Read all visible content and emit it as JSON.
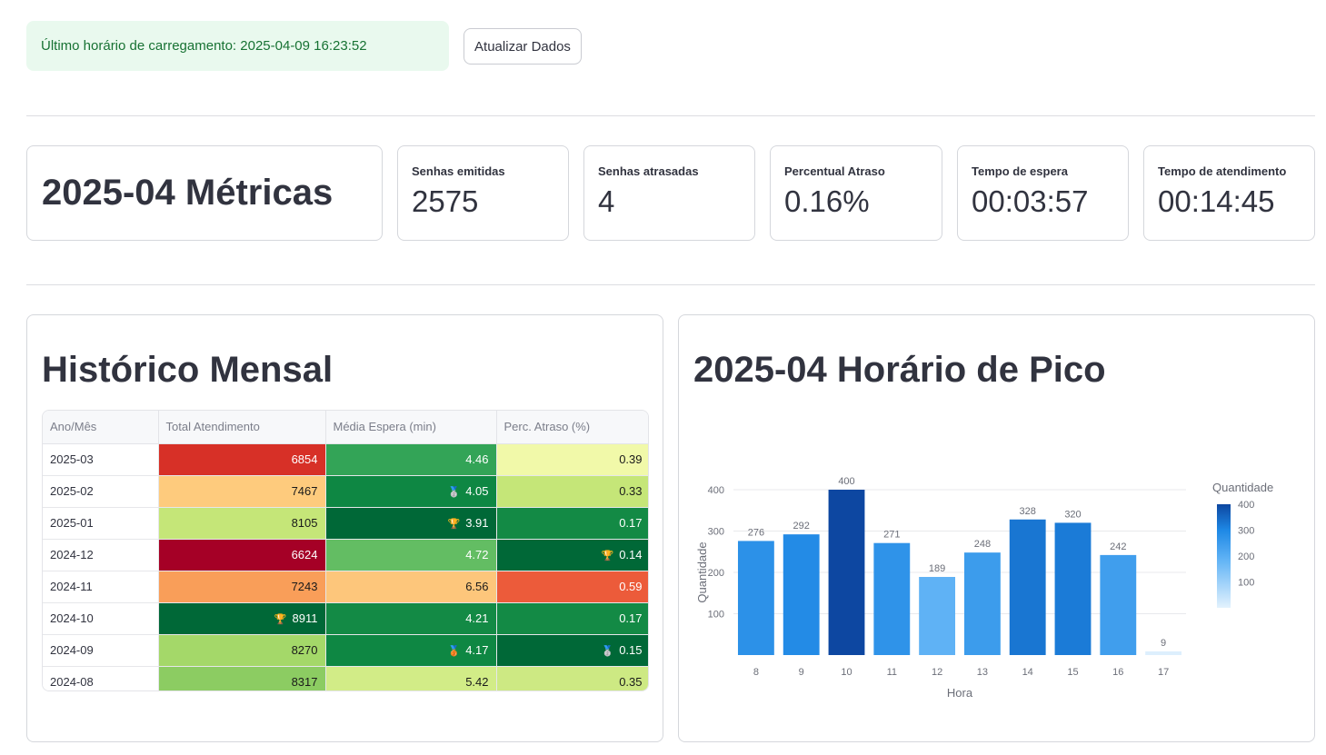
{
  "status": {
    "text": "Último horário de carregamento: 2025-04-09 16:23:52"
  },
  "toolbar": {
    "refresh_label": "Atualizar Dados"
  },
  "metrics_title": "2025-04 Métricas",
  "metrics": [
    {
      "label": "Senhas emitidas",
      "value": "2575"
    },
    {
      "label": "Senhas atrasadas",
      "value": "4"
    },
    {
      "label": "Percentual Atraso",
      "value": "0.16%"
    },
    {
      "label": "Tempo de espera",
      "value": "00:03:57"
    },
    {
      "label": "Tempo de atendimento",
      "value": "00:14:45"
    }
  ],
  "history": {
    "title": "Histórico Mensal",
    "columns": [
      "Ano/Mês",
      "Total Atendimento",
      "Média Espera (min)",
      "Perc. Atraso (%)"
    ],
    "rows": [
      {
        "ym": "2025-03",
        "total": "6854",
        "espera": "4.46",
        "atraso": "0.39",
        "c": [
          "#d73027",
          "#33a457",
          "#f1f9a9"
        ],
        "t": [
          "#fff",
          "#fff",
          "#1a1a1a"
        ],
        "m": [
          "",
          "",
          ""
        ]
      },
      {
        "ym": "2025-02",
        "total": "7467",
        "espera": "4.05",
        "atraso": "0.33",
        "c": [
          "#fecb7d",
          "#0e8743",
          "#c5e678"
        ],
        "t": [
          "#1a1a1a",
          "#fff",
          "#1a1a1a"
        ],
        "m": [
          "",
          "🥈",
          ""
        ]
      },
      {
        "ym": "2025-01",
        "total": "8105",
        "espera": "3.91",
        "atraso": "0.17",
        "c": [
          "#c5e678",
          "#006837",
          "#138a45"
        ],
        "t": [
          "#1a1a1a",
          "#fff",
          "#fff"
        ],
        "m": [
          "",
          "🏆",
          ""
        ]
      },
      {
        "ym": "2024-12",
        "total": "6624",
        "espera": "4.72",
        "atraso": "0.14",
        "c": [
          "#a50026",
          "#63bd63",
          "#006837"
        ],
        "t": [
          "#fff",
          "#fff",
          "#fff"
        ],
        "m": [
          "",
          "",
          "🏆"
        ]
      },
      {
        "ym": "2024-11",
        "total": "7243",
        "espera": "6.56",
        "atraso": "0.59",
        "c": [
          "#f99e59",
          "#fdc67b",
          "#ec5b3a"
        ],
        "t": [
          "#1a1a1a",
          "#1a1a1a",
          "#fff"
        ],
        "m": [
          "",
          "",
          ""
        ]
      },
      {
        "ym": "2024-10",
        "total": "8911",
        "espera": "4.21",
        "atraso": "0.17",
        "c": [
          "#006837",
          "#138a45",
          "#138a45"
        ],
        "t": [
          "#fff",
          "#fff",
          "#fff"
        ],
        "m": [
          "🏆",
          "",
          ""
        ]
      },
      {
        "ym": "2024-09",
        "total": "8270",
        "espera": "4.17",
        "atraso": "0.15",
        "c": [
          "#a4d869",
          "#0e8743",
          "#006837"
        ],
        "t": [
          "#1a1a1a",
          "#fff",
          "#fff"
        ],
        "m": [
          "",
          "🥉",
          "🥈"
        ]
      },
      {
        "ym": "2024-08",
        "total": "8317",
        "espera": "5.42",
        "atraso": "0.35",
        "c": [
          "#8ccc62",
          "#d2ec87",
          "#cde983"
        ],
        "t": [
          "#1a1a1a",
          "#1a1a1a",
          "#1a1a1a"
        ],
        "m": [
          "",
          "",
          ""
        ]
      }
    ]
  },
  "peak": {
    "title": "2025-04 Horário de Pico"
  },
  "chart_data": {
    "type": "bar",
    "categories": [
      "8",
      "9",
      "10",
      "11",
      "12",
      "13",
      "14",
      "15",
      "16",
      "17"
    ],
    "values": [
      276,
      292,
      400,
      271,
      189,
      248,
      328,
      320,
      242,
      9
    ],
    "title": "",
    "xlabel": "Hora",
    "ylabel": "Quantidade",
    "ylim": [
      0,
      400
    ],
    "yticks": [
      100,
      200,
      300,
      400
    ],
    "colorbar": {
      "title": "Quantidade",
      "ticks": [
        100,
        200,
        300,
        400
      ],
      "range": [
        0,
        400
      ]
    },
    "grid": true
  }
}
